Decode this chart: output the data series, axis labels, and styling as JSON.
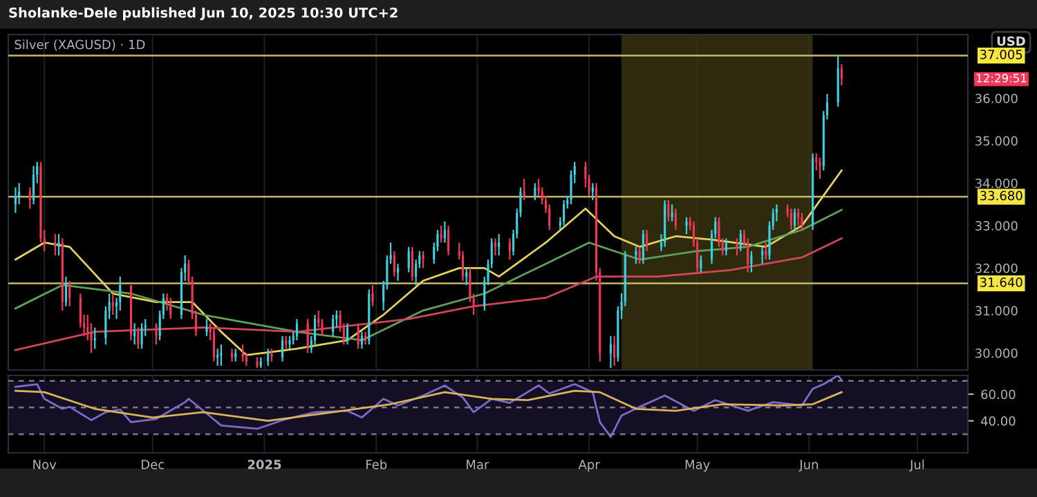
{
  "chart_data": [
    {
      "type": "candlestick",
      "title": "Silver (XAGUSD) · 1D",
      "ylabel": "USD",
      "annotations": [
        "Sholanke-Dele published Jun 10, 2025 10:30 UTC+2",
        "12:29:51"
      ],
      "x": [
        "2024-10-24",
        "2024-10-25",
        "2024-10-28",
        "2024-10-29",
        "2024-10-30",
        "2024-10-31",
        "2024-11-01",
        "2024-11-04",
        "2024-11-05",
        "2024-11-06",
        "2024-11-07",
        "2024-11-08",
        "2024-11-11",
        "2024-11-12",
        "2024-11-13",
        "2024-11-14",
        "2024-11-15",
        "2024-11-18",
        "2024-11-19",
        "2024-11-20",
        "2024-11-21",
        "2024-11-22",
        "2024-11-25",
        "2024-11-26",
        "2024-11-27",
        "2024-11-28",
        "2024-11-29",
        "2024-12-02",
        "2024-12-03",
        "2024-12-04",
        "2024-12-05",
        "2024-12-06",
        "2024-12-09",
        "2024-12-10",
        "2024-12-11",
        "2024-12-12",
        "2024-12-13",
        "2024-12-16",
        "2024-12-17",
        "2024-12-18",
        "2024-12-19",
        "2024-12-20",
        "2024-12-23",
        "2024-12-24",
        "2024-12-26",
        "2024-12-27",
        "2024-12-30",
        "2024-12-31",
        "2025-01-02",
        "2025-01-03",
        "2025-01-06",
        "2025-01-07",
        "2025-01-08",
        "2025-01-09",
        "2025-01-10",
        "2025-01-13",
        "2025-01-14",
        "2025-01-15",
        "2025-01-16",
        "2025-01-17",
        "2025-01-20",
        "2025-01-21",
        "2025-01-22",
        "2025-01-23",
        "2025-01-24",
        "2025-01-27",
        "2025-01-28",
        "2025-01-29",
        "2025-01-30",
        "2025-01-31",
        "2025-02-03",
        "2025-02-04",
        "2025-02-05",
        "2025-02-06",
        "2025-02-07",
        "2025-02-10",
        "2025-02-11",
        "2025-02-12",
        "2025-02-13",
        "2025-02-14",
        "2025-02-17",
        "2025-02-18",
        "2025-02-19",
        "2025-02-20",
        "2025-02-21",
        "2025-02-24",
        "2025-02-25",
        "2025-02-26",
        "2025-02-27",
        "2025-02-28",
        "2025-03-03",
        "2025-03-04",
        "2025-03-05",
        "2025-03-06",
        "2025-03-07",
        "2025-03-10",
        "2025-03-11",
        "2025-03-12",
        "2025-03-13",
        "2025-03-14",
        "2025-03-17",
        "2025-03-18",
        "2025-03-19",
        "2025-03-20",
        "2025-03-21",
        "2025-03-24",
        "2025-03-25",
        "2025-03-26",
        "2025-03-27",
        "2025-03-28",
        "2025-03-31",
        "2025-04-01",
        "2025-04-02",
        "2025-04-03",
        "2025-04-04",
        "2025-04-07",
        "2025-04-08",
        "2025-04-09",
        "2025-04-10",
        "2025-04-11",
        "2025-04-14",
        "2025-04-15",
        "2025-04-16",
        "2025-04-17",
        "2025-04-21",
        "2025-04-22",
        "2025-04-23",
        "2025-04-24",
        "2025-04-25",
        "2025-04-28",
        "2025-04-29",
        "2025-04-30",
        "2025-05-01",
        "2025-05-02",
        "2025-05-05",
        "2025-05-06",
        "2025-05-07",
        "2025-05-08",
        "2025-05-09",
        "2025-05-12",
        "2025-05-13",
        "2025-05-14",
        "2025-05-15",
        "2025-05-16",
        "2025-05-19",
        "2025-05-20",
        "2025-05-21",
        "2025-05-22",
        "2025-05-23",
        "2025-05-26",
        "2025-05-27",
        "2025-05-28",
        "2025-05-29",
        "2025-05-30",
        "2025-06-02",
        "2025-06-03",
        "2025-06-04",
        "2025-06-05",
        "2025-06-06",
        "2025-06-09",
        "2025-06-10"
      ],
      "ohlc": [
        [
          33.5,
          33.9,
          33.3,
          33.7
        ],
        [
          33.7,
          34.0,
          33.5,
          33.8
        ],
        [
          33.8,
          33.9,
          33.4,
          33.6
        ],
        [
          33.6,
          34.4,
          33.5,
          34.2
        ],
        [
          34.2,
          34.5,
          34.0,
          34.4
        ],
        [
          34.4,
          34.5,
          32.6,
          32.7
        ],
        [
          32.7,
          32.9,
          32.4,
          32.6
        ],
        [
          32.6,
          32.8,
          32.3,
          32.5
        ],
        [
          32.5,
          32.8,
          32.3,
          32.6
        ],
        [
          32.6,
          32.7,
          31.0,
          31.2
        ],
        [
          31.2,
          31.8,
          31.1,
          31.6
        ],
        [
          31.6,
          31.7,
          31.1,
          31.3
        ],
        [
          31.3,
          31.4,
          30.6,
          30.7
        ],
        [
          30.7,
          30.9,
          30.4,
          30.6
        ],
        [
          30.6,
          30.9,
          30.3,
          30.5
        ],
        [
          30.5,
          30.7,
          30.0,
          30.3
        ],
        [
          30.3,
          30.6,
          30.1,
          30.35
        ],
        [
          30.35,
          31.1,
          30.2,
          31.0
        ],
        [
          31.0,
          31.4,
          30.8,
          31.2
        ],
        [
          31.2,
          31.4,
          30.9,
          31.1
        ],
        [
          31.1,
          31.3,
          30.8,
          31.2
        ],
        [
          31.2,
          31.8,
          31.0,
          31.6
        ],
        [
          31.6,
          31.6,
          30.3,
          30.4
        ],
        [
          30.4,
          30.7,
          30.2,
          30.5
        ],
        [
          30.5,
          30.6,
          30.1,
          30.2
        ],
        [
          30.2,
          30.7,
          30.1,
          30.6
        ],
        [
          30.6,
          30.8,
          30.4,
          30.65
        ],
        [
          30.65,
          30.7,
          30.2,
          30.4
        ],
        [
          30.4,
          31.0,
          30.3,
          30.9
        ],
        [
          30.9,
          31.4,
          30.8,
          31.3
        ],
        [
          31.3,
          31.4,
          31.0,
          31.2
        ],
        [
          31.2,
          31.3,
          30.8,
          30.9
        ],
        [
          30.9,
          32.0,
          30.8,
          31.9
        ],
        [
          31.9,
          32.3,
          31.7,
          32.1
        ],
        [
          32.1,
          32.2,
          31.6,
          31.7
        ],
        [
          31.7,
          31.8,
          30.8,
          30.9
        ],
        [
          30.9,
          31.0,
          30.4,
          30.5
        ],
        [
          30.5,
          30.8,
          30.4,
          30.6
        ],
        [
          30.6,
          30.7,
          30.3,
          30.5
        ],
        [
          30.5,
          30.6,
          29.8,
          29.9
        ],
        [
          29.9,
          30.1,
          29.7,
          29.95
        ],
        [
          29.95,
          30.2,
          29.7,
          30.0
        ],
        [
          30.0,
          30.1,
          29.8,
          29.9
        ],
        [
          29.9,
          30.1,
          29.8,
          30.0
        ],
        [
          30.0,
          30.2,
          29.8,
          29.9
        ],
        [
          29.9,
          30.0,
          29.7,
          29.8
        ],
        [
          29.8,
          29.9,
          29.65,
          29.7
        ],
        [
          29.7,
          29.9,
          29.65,
          29.8
        ],
        [
          29.8,
          30.1,
          29.7,
          30.0
        ],
        [
          30.0,
          30.1,
          29.8,
          29.9
        ],
        [
          29.9,
          30.4,
          29.8,
          30.3
        ],
        [
          30.3,
          30.4,
          30.1,
          30.2
        ],
        [
          30.2,
          30.4,
          30.1,
          30.3
        ],
        [
          30.3,
          30.5,
          30.2,
          30.4
        ],
        [
          30.4,
          30.8,
          30.3,
          30.7
        ],
        [
          30.7,
          30.8,
          30.0,
          30.1
        ],
        [
          30.1,
          30.4,
          30.0,
          30.3
        ],
        [
          30.3,
          30.9,
          30.2,
          30.8
        ],
        [
          30.8,
          31.0,
          30.6,
          30.7
        ],
        [
          30.7,
          30.8,
          30.4,
          30.5
        ],
        [
          30.5,
          30.9,
          30.4,
          30.8
        ],
        [
          30.8,
          31.0,
          30.6,
          30.9
        ],
        [
          30.9,
          31.0,
          30.5,
          30.6
        ],
        [
          30.6,
          30.7,
          30.2,
          30.3
        ],
        [
          30.3,
          30.7,
          30.2,
          30.6
        ],
        [
          30.6,
          30.7,
          30.1,
          30.2
        ],
        [
          30.2,
          30.5,
          30.1,
          30.4
        ],
        [
          30.4,
          30.5,
          30.2,
          30.3
        ],
        [
          30.3,
          31.5,
          30.2,
          31.4
        ],
        [
          31.4,
          31.6,
          31.1,
          31.2
        ],
        [
          31.2,
          31.7,
          31.0,
          31.6
        ],
        [
          31.6,
          32.3,
          31.5,
          32.2
        ],
        [
          32.2,
          32.6,
          32.1,
          32.3
        ],
        [
          32.3,
          32.4,
          31.8,
          31.9
        ],
        [
          31.9,
          32.1,
          31.7,
          32.0
        ],
        [
          32.0,
          32.5,
          31.9,
          32.4
        ],
        [
          32.4,
          32.5,
          31.7,
          31.8
        ],
        [
          31.8,
          32.2,
          31.6,
          32.1
        ],
        [
          32.1,
          32.4,
          32.0,
          32.3
        ],
        [
          32.3,
          32.4,
          32.0,
          32.2
        ],
        [
          32.2,
          32.6,
          32.1,
          32.5
        ],
        [
          32.5,
          32.9,
          32.4,
          32.8
        ],
        [
          32.8,
          33.0,
          32.6,
          32.7
        ],
        [
          32.7,
          33.1,
          32.6,
          32.9
        ],
        [
          32.9,
          33.0,
          32.3,
          32.4
        ],
        [
          32.4,
          32.6,
          32.2,
          32.3
        ],
        [
          32.3,
          32.4,
          31.7,
          31.8
        ],
        [
          31.8,
          32.0,
          31.6,
          31.9
        ],
        [
          31.9,
          32.0,
          31.2,
          31.3
        ],
        [
          31.3,
          31.4,
          30.9,
          31.1
        ],
        [
          31.1,
          31.8,
          31.0,
          31.7
        ],
        [
          31.7,
          32.2,
          31.6,
          32.1
        ],
        [
          32.1,
          32.7,
          32.0,
          32.6
        ],
        [
          32.6,
          32.7,
          32.3,
          32.5
        ],
        [
          32.5,
          32.8,
          32.3,
          32.6
        ],
        [
          32.6,
          32.7,
          32.2,
          32.4
        ],
        [
          32.4,
          32.9,
          32.3,
          32.8
        ],
        [
          32.8,
          33.4,
          32.7,
          33.3
        ],
        [
          33.3,
          33.9,
          33.2,
          33.8
        ],
        [
          33.8,
          34.1,
          33.6,
          33.7
        ],
        [
          33.7,
          34.0,
          33.6,
          33.9
        ],
        [
          33.9,
          34.1,
          33.7,
          33.8
        ],
        [
          33.8,
          33.9,
          33.5,
          33.6
        ],
        [
          33.6,
          33.7,
          33.3,
          33.4
        ],
        [
          33.4,
          33.5,
          32.9,
          33.0
        ],
        [
          33.0,
          33.2,
          32.9,
          33.1
        ],
        [
          33.1,
          33.6,
          33.0,
          33.5
        ],
        [
          33.5,
          33.7,
          33.4,
          33.6
        ],
        [
          33.6,
          34.3,
          33.5,
          34.2
        ],
        [
          34.2,
          34.5,
          34.0,
          34.4
        ],
        [
          34.4,
          34.5,
          33.9,
          34.1
        ],
        [
          34.1,
          34.2,
          33.7,
          33.8
        ],
        [
          33.8,
          34.0,
          33.6,
          33.9
        ],
        [
          33.9,
          34.0,
          31.7,
          31.9
        ],
        [
          31.9,
          32.0,
          29.8,
          30.0
        ],
        [
          30.0,
          30.4,
          29.65,
          30.2
        ],
        [
          30.2,
          30.4,
          29.7,
          29.9
        ],
        [
          29.9,
          31.1,
          29.8,
          31.0
        ],
        [
          31.0,
          31.4,
          30.8,
          31.2
        ],
        [
          31.2,
          32.4,
          31.1,
          32.3
        ],
        [
          32.3,
          32.5,
          32.1,
          32.4
        ],
        [
          32.4,
          32.5,
          32.1,
          32.2
        ],
        [
          32.2,
          32.9,
          32.1,
          32.8
        ],
        [
          32.8,
          32.9,
          32.4,
          32.5
        ],
        [
          32.5,
          32.8,
          32.4,
          32.6
        ],
        [
          32.6,
          33.6,
          32.5,
          33.5
        ],
        [
          33.5,
          33.6,
          33.1,
          33.2
        ],
        [
          33.2,
          33.5,
          33.1,
          33.3
        ],
        [
          33.3,
          33.4,
          32.9,
          33.0
        ],
        [
          33.0,
          33.2,
          32.8,
          33.1
        ],
        [
          33.1,
          33.2,
          32.9,
          33.0
        ],
        [
          33.0,
          33.1,
          32.5,
          32.6
        ],
        [
          32.6,
          32.7,
          31.9,
          32.0
        ],
        [
          32.0,
          32.3,
          31.9,
          32.2
        ],
        [
          32.2,
          32.9,
          32.1,
          32.8
        ],
        [
          32.8,
          33.2,
          32.7,
          33.1
        ],
        [
          33.1,
          33.2,
          32.5,
          32.6
        ],
        [
          32.6,
          32.7,
          32.3,
          32.4
        ],
        [
          32.4,
          32.7,
          32.3,
          32.6
        ],
        [
          32.6,
          32.7,
          32.3,
          32.5
        ],
        [
          32.5,
          32.9,
          32.4,
          32.8
        ],
        [
          32.8,
          32.9,
          32.5,
          32.6
        ],
        [
          32.6,
          32.7,
          31.9,
          32.1
        ],
        [
          32.1,
          32.4,
          31.9,
          32.3
        ],
        [
          32.3,
          32.5,
          32.1,
          32.4
        ],
        [
          32.4,
          32.6,
          32.2,
          32.3
        ],
        [
          32.3,
          33.1,
          32.2,
          33.0
        ],
        [
          33.0,
          33.4,
          32.9,
          33.3
        ],
        [
          33.3,
          33.5,
          33.1,
          33.4
        ],
        [
          33.4,
          33.5,
          33.2,
          33.3
        ],
        [
          33.3,
          33.4,
          32.9,
          33.0
        ],
        [
          33.0,
          33.4,
          32.9,
          33.3
        ],
        [
          33.3,
          33.4,
          33.0,
          33.2
        ],
        [
          33.2,
          33.3,
          32.9,
          33.0
        ],
        [
          33.0,
          34.7,
          32.9,
          34.6
        ],
        [
          34.6,
          34.7,
          34.3,
          34.5
        ],
        [
          34.5,
          34.6,
          34.1,
          34.4
        ],
        [
          34.4,
          35.7,
          34.3,
          35.6
        ],
        [
          35.6,
          36.1,
          35.5,
          35.9
        ],
        [
          35.9,
          37.0,
          35.8,
          36.7
        ],
        [
          36.7,
          36.8,
          36.3,
          36.45
        ]
      ],
      "series": [
        {
          "type": "line",
          "color": "#e6d25a",
          "x": [
            "2024-10-24",
            "2024-11-01",
            "2024-11-08",
            "2024-11-20",
            "2024-12-02",
            "2024-12-12",
            "2024-12-20",
            "2024-12-27",
            "2025-01-10",
            "2025-01-24",
            "2025-02-03",
            "2025-02-14",
            "2025-02-24",
            "2025-03-03",
            "2025-03-07",
            "2025-03-20",
            "2025-03-31",
            "2025-04-08",
            "2025-04-15",
            "2025-04-25",
            "2025-05-05",
            "2025-05-20",
            "2025-05-30",
            "2025-06-10"
          ],
          "values": [
            32.2,
            32.6,
            32.5,
            31.4,
            31.2,
            31.2,
            30.5,
            29.95,
            30.1,
            30.3,
            30.9,
            31.7,
            32.0,
            32.0,
            31.8,
            32.6,
            33.4,
            32.75,
            32.5,
            32.75,
            32.67,
            32.5,
            33.0,
            34.3
          ]
        },
        {
          "type": "line",
          "color": "#5fa05a",
          "x": [
            "2024-10-24",
            "2024-11-06",
            "2024-11-25",
            "2024-12-15",
            "2025-01-10",
            "2025-01-28",
            "2025-02-14",
            "2025-03-03",
            "2025-03-20",
            "2025-04-01",
            "2025-04-15",
            "2025-05-01",
            "2025-05-15",
            "2025-05-30",
            "2025-06-10"
          ],
          "values": [
            31.05,
            31.6,
            31.4,
            30.9,
            30.5,
            30.3,
            31.0,
            31.4,
            32.1,
            32.6,
            32.2,
            32.4,
            32.5,
            32.9,
            33.37
          ]
        },
        {
          "type": "line",
          "color": "#d2455a",
          "x": [
            "2024-10-24",
            "2024-11-15",
            "2024-12-15",
            "2025-01-10",
            "2025-02-10",
            "2025-02-28",
            "2025-03-20",
            "2025-04-03",
            "2025-04-20",
            "2025-05-10",
            "2025-05-30",
            "2025-06-10"
          ],
          "values": [
            30.07,
            30.5,
            30.6,
            30.5,
            30.8,
            31.1,
            31.3,
            31.8,
            31.8,
            31.95,
            32.25,
            32.7
          ]
        }
      ],
      "ref_lines": [
        {
          "axis": "y",
          "value": 37.005,
          "label": "37.005",
          "color": "#c8b870"
        },
        {
          "axis": "y",
          "value": 33.68,
          "label": "33.680",
          "color": "#c8b870"
        },
        {
          "axis": "y",
          "value": 31.64,
          "label": "31.640",
          "color": "#c8b870"
        }
      ],
      "bands": [
        {
          "axis": "x",
          "from": "2025-04-10",
          "to": "2025-06-02",
          "color": "#3a3510"
        }
      ],
      "xlim": [
        "2024-10-22",
        "2025-07-15"
      ],
      "ylim": [
        29.6,
        37.5
      ],
      "yticks": [
        {
          "value": 30,
          "label": "30.000"
        },
        {
          "value": 31,
          "label": "31.000"
        },
        {
          "value": 32,
          "label": "32.000"
        },
        {
          "value": 33,
          "label": "33.000"
        },
        {
          "value": 34,
          "label": "34.000"
        },
        {
          "value": 35,
          "label": "35.000"
        },
        {
          "value": 36,
          "label": "36.000"
        }
      ],
      "grid": "x",
      "tick_labels": "y"
    },
    {
      "type": "line",
      "series": [
        {
          "color": "#7e6bc8",
          "x": [
            "2024-10-24",
            "2024-10-30",
            "2024-11-01",
            "2024-11-06",
            "2024-11-08",
            "2024-11-14",
            "2024-11-18",
            "2024-11-22",
            "2024-11-25",
            "2024-12-02",
            "2024-12-10",
            "2024-12-11",
            "2024-12-16",
            "2024-12-20",
            "2024-12-30",
            "2025-01-06",
            "2025-01-15",
            "2025-01-24",
            "2025-01-28",
            "2025-02-03",
            "2025-02-07",
            "2025-02-14",
            "2025-02-20",
            "2025-02-25",
            "2025-02-28",
            "2025-03-05",
            "2025-03-10",
            "2025-03-18",
            "2025-03-21",
            "2025-03-28",
            "2025-04-02",
            "2025-04-04",
            "2025-04-07",
            "2025-04-10",
            "2025-04-15",
            "2025-04-22",
            "2025-04-30",
            "2025-05-06",
            "2025-05-15",
            "2025-05-22",
            "2025-05-30",
            "2025-06-02",
            "2025-06-05",
            "2025-06-09",
            "2025-06-10"
          ],
          "values": [
            65.5,
            67.5,
            56.5,
            49,
            50.5,
            40.5,
            46.5,
            48.5,
            39,
            41.5,
            54,
            56.5,
            45.5,
            36.5,
            34,
            40.5,
            46.5,
            47.5,
            42.5,
            56.5,
            51.5,
            59,
            66.5,
            57.5,
            46.5,
            56.5,
            53.5,
            66.5,
            60.5,
            67.5,
            61.5,
            39,
            28,
            44,
            50.5,
            59,
            47.5,
            55.5,
            47.5,
            54,
            51.5,
            64,
            67.5,
            74,
            70.5
          ]
        },
        {
          "color": "#d8b45a",
          "x": [
            "2024-10-24",
            "2024-11-01",
            "2024-11-15",
            "2024-12-01",
            "2024-12-15",
            "2025-01-02",
            "2025-01-20",
            "2025-02-05",
            "2025-02-20",
            "2025-03-05",
            "2025-03-15",
            "2025-03-28",
            "2025-04-04",
            "2025-04-14",
            "2025-04-25",
            "2025-05-08",
            "2025-05-25",
            "2025-06-02",
            "2025-06-10"
          ],
          "values": [
            62.5,
            61.5,
            49,
            42.5,
            46.5,
            40,
            46.5,
            52.5,
            61.5,
            56.5,
            55.5,
            62.5,
            61.5,
            49,
            47.5,
            52.5,
            51.5,
            52.5,
            61.5
          ]
        }
      ],
      "ref_lines": [
        {
          "axis": "y",
          "value": 70,
          "line_style": "dashed",
          "color": "#787b86"
        },
        {
          "axis": "y",
          "value": 50,
          "line_style": "dashed",
          "color": "#787b86"
        },
        {
          "axis": "y",
          "value": 30,
          "line_style": "dashed",
          "color": "#787b86"
        }
      ],
      "xlim": [
        "2024-10-22",
        "2025-07-15"
      ],
      "xticks": [
        {
          "value": "2024-11-01",
          "label": "Nov"
        },
        {
          "value": "2024-12-01",
          "label": "Dec"
        },
        {
          "value": "2025-01-01",
          "label": "2025"
        },
        {
          "value": "2025-02-01",
          "label": "Feb"
        },
        {
          "value": "2025-03-01",
          "label": "Mar"
        },
        {
          "value": "2025-04-01",
          "label": "Apr"
        },
        {
          "value": "2025-05-01",
          "label": "May"
        },
        {
          "value": "2025-06-01",
          "label": "Jun"
        },
        {
          "value": "2025-07-01",
          "label": "Jul"
        }
      ],
      "bands": [
        {
          "axis": "y",
          "from": 30,
          "to": 70,
          "color": "#140f24"
        }
      ],
      "ylim": [
        16,
        74
      ],
      "yticks": [
        {
          "value": 40,
          "label": "40.00"
        },
        {
          "value": 60,
          "label": "60.00"
        }
      ],
      "grid": "x"
    }
  ]
}
